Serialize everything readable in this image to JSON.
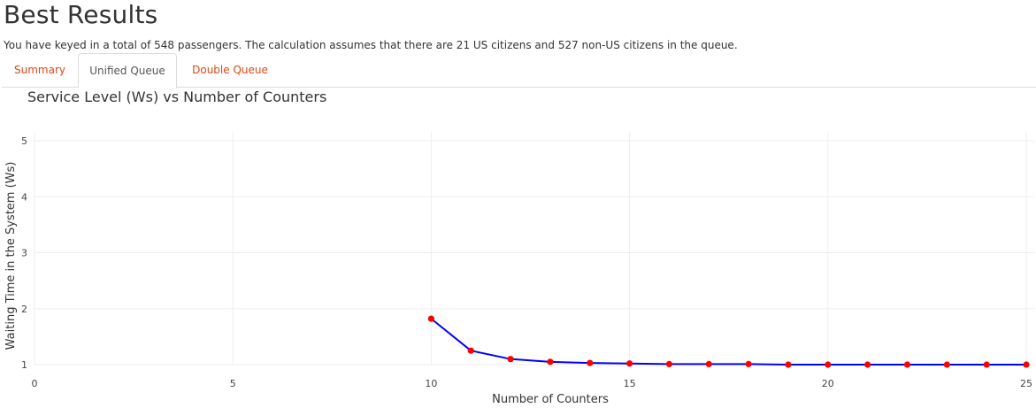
{
  "header": {
    "title": "Best Results",
    "summary": "You have keyed in a total of 548 passengers. The calculation assumes that there are 21 US citizens and 527 non-US citizens in the queue."
  },
  "tabs": [
    {
      "label": "Summary",
      "active": false
    },
    {
      "label": "Unified Queue",
      "active": true
    },
    {
      "label": "Double Queue",
      "active": false
    }
  ],
  "colors": {
    "tab_link": "#dd4814",
    "line": "#0000ff",
    "marker": "#ff0000",
    "grid": "#eeeeee"
  },
  "chart_data": {
    "type": "line",
    "title": "Service Level (Ws) vs Number of Counters",
    "xlabel": "Number of Counters",
    "ylabel": "Waiting Time in the System (Ws)",
    "xlim": [
      0,
      25
    ],
    "ylim": [
      1,
      5
    ],
    "xticks": [
      0,
      5,
      10,
      15,
      20,
      25
    ],
    "yticks": [
      1,
      2,
      3,
      4,
      5
    ],
    "grid": true,
    "series": [
      {
        "x": [
          10,
          11,
          12,
          13,
          14,
          15,
          16,
          17,
          18,
          19,
          20,
          21,
          22,
          23,
          24,
          25
        ],
        "y": [
          1.82,
          1.25,
          1.1,
          1.05,
          1.03,
          1.02,
          1.01,
          1.01,
          1.01,
          1.0,
          1.0,
          1.0,
          1.0,
          1.0,
          1.0,
          1.0
        ]
      }
    ]
  }
}
